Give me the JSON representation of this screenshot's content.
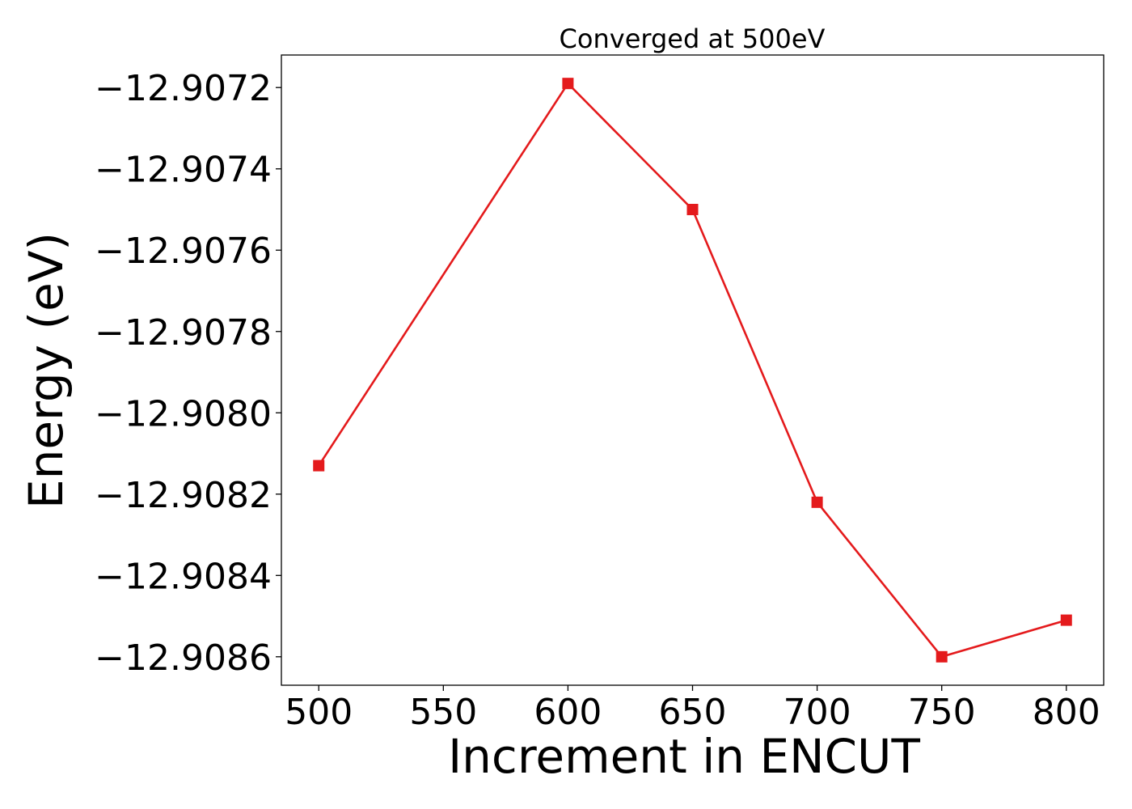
{
  "chart_data": {
    "type": "line",
    "title": "Converged at 500eV",
    "xlabel": "Increment in ENCUT",
    "ylabel": "Energy (eV)",
    "x": [
      500,
      600,
      650,
      700,
      750,
      800
    ],
    "series": [
      {
        "values": [
          -12.90813,
          -12.90719,
          -12.9075,
          -12.90822,
          -12.9086,
          -12.90851
        ],
        "color": "#e41a1c",
        "marker": "square"
      }
    ],
    "xticks": [
      500,
      550,
      600,
      650,
      700,
      750,
      800
    ],
    "xtick_labels": [
      "500",
      "550",
      "600",
      "650",
      "700",
      "750",
      "800"
    ],
    "yticks": [
      -12.9072,
      -12.9074,
      -12.9076,
      -12.9078,
      -12.908,
      -12.9082,
      -12.9084,
      -12.9086
    ],
    "ytick_labels": [
      "−12.9072",
      "−12.9074",
      "−12.9076",
      "−12.9078",
      "−12.9080",
      "−12.9082",
      "−12.9084",
      "−12.9086"
    ],
    "xlim": [
      485,
      815
    ],
    "ylim": [
      -12.90867,
      -12.90712
    ],
    "grid": false,
    "legend": false
  }
}
